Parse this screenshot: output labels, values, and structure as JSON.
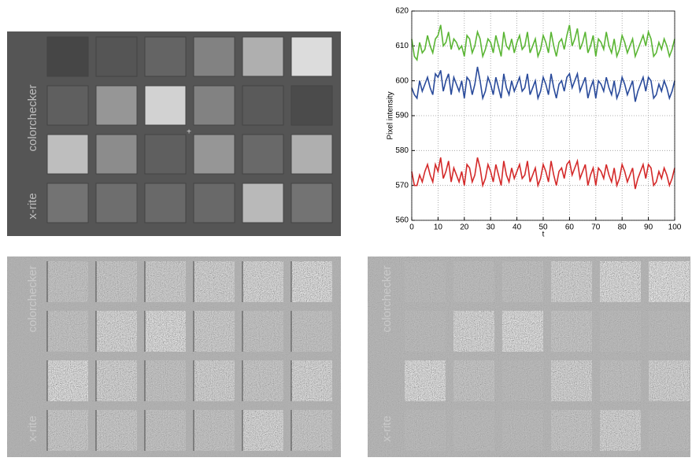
{
  "photo": {
    "brand": "colorchecker",
    "logo": "x-rite"
  },
  "chart_data": {
    "type": "line",
    "x_label": "t",
    "y_label": "Pixel intensity",
    "xlim": [
      0,
      100
    ],
    "xticks": [
      0,
      10,
      20,
      30,
      40,
      50,
      60,
      70,
      80,
      90,
      100
    ],
    "ylim": [
      560,
      620
    ],
    "yticks": [
      560,
      570,
      580,
      590,
      600,
      610,
      620
    ],
    "grid": true,
    "x": [
      0,
      1,
      2,
      3,
      4,
      5,
      6,
      7,
      8,
      9,
      10,
      11,
      12,
      13,
      14,
      15,
      16,
      17,
      18,
      19,
      20,
      21,
      22,
      23,
      24,
      25,
      26,
      27,
      28,
      29,
      30,
      31,
      32,
      33,
      34,
      35,
      36,
      37,
      38,
      39,
      40,
      41,
      42,
      43,
      44,
      45,
      46,
      47,
      48,
      49,
      50,
      51,
      52,
      53,
      54,
      55,
      56,
      57,
      58,
      59,
      60,
      61,
      62,
      63,
      64,
      65,
      66,
      67,
      68,
      69,
      70,
      71,
      72,
      73,
      74,
      75,
      76,
      77,
      78,
      79,
      80,
      81,
      82,
      83,
      84,
      85,
      86,
      87,
      88,
      89,
      90,
      91,
      92,
      93,
      94,
      95,
      96,
      97,
      98,
      99,
      100
    ],
    "series": [
      {
        "color": "#5ab534",
        "values": [
          612,
          607,
          606,
          611,
          608,
          609,
          613,
          610,
          608,
          612,
          613,
          616,
          610,
          611,
          614,
          609,
          612,
          611,
          609,
          610,
          607,
          613,
          612,
          608,
          610,
          614,
          612,
          607,
          609,
          612,
          611,
          608,
          613,
          610,
          607,
          614,
          610,
          609,
          612,
          608,
          611,
          613,
          609,
          610,
          614,
          608,
          610,
          612,
          607,
          609,
          613,
          611,
          608,
          614,
          610,
          607,
          611,
          612,
          609,
          613,
          616,
          610,
          612,
          615,
          609,
          611,
          614,
          608,
          610,
          613,
          607,
          612,
          611,
          609,
          614,
          610,
          608,
          612,
          607,
          609,
          613,
          611,
          608,
          610,
          612,
          607,
          609,
          611,
          613,
          610,
          614,
          612,
          607,
          608,
          611,
          609,
          612,
          610,
          607,
          609,
          612
        ]
      },
      {
        "color": "#2a4b9b",
        "values": [
          598,
          596,
          595,
          600,
          597,
          599,
          601,
          598,
          596,
          602,
          601,
          603,
          597,
          600,
          602,
          596,
          601,
          599,
          597,
          600,
          595,
          601,
          600,
          596,
          599,
          604,
          600,
          595,
          597,
          601,
          599,
          596,
          601,
          598,
          595,
          602,
          598,
          596,
          600,
          597,
          599,
          601,
          597,
          598,
          602,
          596,
          598,
          600,
          595,
          597,
          601,
          599,
          596,
          602,
          598,
          595,
          599,
          600,
          597,
          601,
          602,
          598,
          600,
          602,
          597,
          599,
          601,
          595,
          598,
          600,
          595,
          600,
          599,
          597,
          601,
          598,
          596,
          600,
          595,
          597,
          601,
          599,
          596,
          598,
          600,
          594,
          597,
          599,
          601,
          597,
          601,
          600,
          595,
          596,
          599,
          597,
          600,
          598,
          595,
          597,
          600
        ]
      },
      {
        "color": "#d42a2a",
        "values": [
          574,
          570,
          570,
          573,
          571,
          574,
          576,
          573,
          571,
          576,
          574,
          578,
          572,
          574,
          577,
          571,
          575,
          573,
          571,
          574,
          570,
          576,
          575,
          571,
          573,
          578,
          575,
          570,
          572,
          576,
          574,
          571,
          576,
          573,
          570,
          577,
          573,
          571,
          575,
          572,
          574,
          576,
          572,
          573,
          577,
          571,
          573,
          575,
          570,
          572,
          576,
          574,
          571,
          577,
          573,
          570,
          574,
          575,
          572,
          576,
          577,
          573,
          575,
          577,
          572,
          574,
          576,
          570,
          573,
          575,
          570,
          575,
          574,
          572,
          576,
          573,
          571,
          575,
          570,
          572,
          576,
          574,
          571,
          573,
          575,
          569,
          572,
          574,
          576,
          572,
          576,
          575,
          570,
          571,
          574,
          572,
          575,
          573,
          570,
          572,
          575
        ]
      }
    ]
  }
}
